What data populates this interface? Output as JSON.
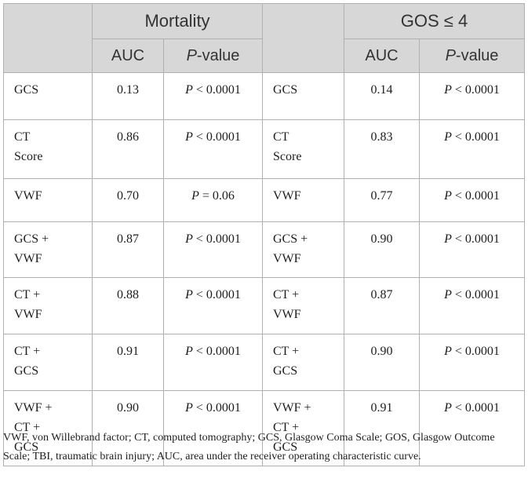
{
  "header": {
    "group_left": "Mortality",
    "group_right": "GOS ≤ 4",
    "auc": "AUC",
    "p_italic": "P",
    "p_suffix": "-value"
  },
  "rows": [
    {
      "label_left": "GCS",
      "auc_left": "0.13",
      "p_left": "< 0.0001",
      "label_right": "GCS",
      "auc_right": "0.14",
      "p_right": "< 0.0001"
    },
    {
      "label_left": "CT\nScore",
      "auc_left": "0.86",
      "p_left": "< 0.0001",
      "label_right": "CT\nScore",
      "auc_right": "0.83",
      "p_right": "< 0.0001"
    },
    {
      "label_left": "VWF",
      "auc_left": "0.70",
      "p_left": "= 0.06",
      "label_right": "VWF",
      "auc_right": "0.77",
      "p_right": "< 0.0001"
    },
    {
      "label_left": "GCS +\nVWF",
      "auc_left": "0.87",
      "p_left": "< 0.0001",
      "label_right": "GCS +\nVWF",
      "auc_right": "0.90",
      "p_right": "< 0.0001"
    },
    {
      "label_left": "CT +\nVWF",
      "auc_left": "0.88",
      "p_left": "< 0.0001",
      "label_right": "CT +\nVWF",
      "auc_right": "0.87",
      "p_right": "< 0.0001"
    },
    {
      "label_left": "CT +\nGCS",
      "auc_left": "0.91",
      "p_left": "< 0.0001",
      "label_right": "CT +\nGCS",
      "auc_right": "0.90",
      "p_right": "< 0.0001"
    },
    {
      "label_left": "VWF +\nCT +\nGCS",
      "auc_left": "0.90",
      "p_left": "< 0.0001",
      "label_right": "VWF +\nCT +\nGCS",
      "auc_right": "0.91",
      "p_right": "< 0.0001"
    }
  ],
  "footnote": "VWF, von Willebrand factor; CT, computed tomography; GCS, Glasgow Coma Scale; GOS, Glasgow Outcome Scale; TBI, traumatic brain injury; AUC, area under the receiver operating characteristic curve.",
  "colors": {
    "header_bg": "#d7d7d7",
    "border": "#b0b0b0",
    "text": "#1e1e1e"
  }
}
